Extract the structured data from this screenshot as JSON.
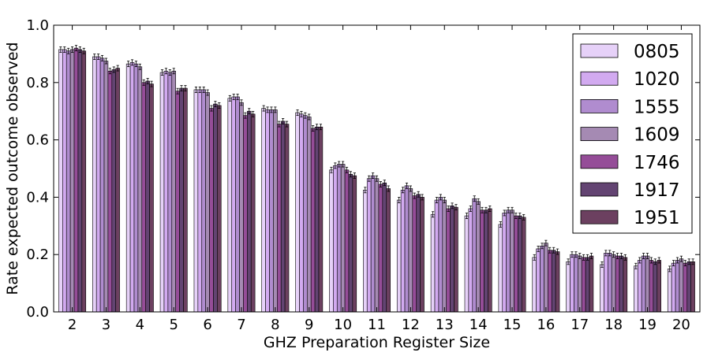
{
  "chart_data": {
    "type": "bar",
    "xlabel": "GHZ Preparation Register Size",
    "ylabel": "Rate expected outcome observed",
    "ylim": [
      0.0,
      1.0
    ],
    "yticks": [
      "0.0",
      "0.2",
      "0.4",
      "0.6",
      "0.8",
      "1.0"
    ],
    "ytick_values": [
      0.0,
      0.2,
      0.4,
      0.6,
      0.8,
      1.0
    ],
    "categories": [
      "2",
      "3",
      "4",
      "5",
      "6",
      "7",
      "8",
      "9",
      "10",
      "11",
      "12",
      "13",
      "14",
      "15",
      "16",
      "17",
      "18",
      "19",
      "20"
    ],
    "grid": false,
    "legend_position": "top-right",
    "series": [
      {
        "name": "0805",
        "color": "#e6d1f8",
        "values": [
          0.915,
          0.89,
          0.865,
          0.835,
          0.775,
          0.745,
          0.71,
          0.695,
          0.495,
          0.425,
          0.39,
          0.34,
          0.335,
          0.305,
          0.19,
          0.175,
          0.165,
          0.16,
          0.15
        ]
      },
      {
        "name": "1020",
        "color": "#d2aaf0",
        "values": [
          0.915,
          0.89,
          0.87,
          0.84,
          0.775,
          0.75,
          0.705,
          0.69,
          0.51,
          0.465,
          0.425,
          0.39,
          0.36,
          0.345,
          0.22,
          0.2,
          0.205,
          0.18,
          0.17
        ]
      },
      {
        "name": "1555",
        "color": "#b08ccf",
        "values": [
          0.91,
          0.885,
          0.865,
          0.835,
          0.775,
          0.75,
          0.705,
          0.685,
          0.515,
          0.475,
          0.44,
          0.4,
          0.395,
          0.355,
          0.23,
          0.2,
          0.205,
          0.195,
          0.18
        ]
      },
      {
        "name": "1609",
        "color": "#a58ab3",
        "values": [
          0.915,
          0.875,
          0.855,
          0.84,
          0.765,
          0.73,
          0.705,
          0.68,
          0.515,
          0.465,
          0.43,
          0.39,
          0.385,
          0.355,
          0.24,
          0.195,
          0.2,
          0.195,
          0.185
        ]
      },
      {
        "name": "1746",
        "color": "#954d98",
        "values": [
          0.92,
          0.84,
          0.8,
          0.77,
          0.71,
          0.685,
          0.655,
          0.64,
          0.495,
          0.445,
          0.405,
          0.36,
          0.355,
          0.335,
          0.215,
          0.19,
          0.195,
          0.18,
          0.17
        ]
      },
      {
        "name": "1917",
        "color": "#634472",
        "values": [
          0.915,
          0.845,
          0.805,
          0.78,
          0.725,
          0.7,
          0.665,
          0.645,
          0.48,
          0.45,
          0.41,
          0.37,
          0.355,
          0.335,
          0.215,
          0.19,
          0.195,
          0.175,
          0.175
        ]
      },
      {
        "name": "1951",
        "color": "#6c4060",
        "values": [
          0.91,
          0.85,
          0.795,
          0.78,
          0.72,
          0.69,
          0.655,
          0.645,
          0.475,
          0.43,
          0.4,
          0.365,
          0.36,
          0.33,
          0.21,
          0.195,
          0.19,
          0.18,
          0.175
        ]
      }
    ]
  }
}
